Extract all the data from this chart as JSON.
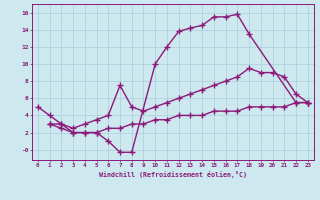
{
  "xlabel": "Windchill (Refroidissement éolien,°C)",
  "xlim": [
    -0.5,
    23.5
  ],
  "ylim": [
    -1.2,
    17
  ],
  "xticks": [
    0,
    1,
    2,
    3,
    4,
    5,
    6,
    7,
    8,
    9,
    10,
    11,
    12,
    13,
    14,
    15,
    16,
    17,
    18,
    19,
    20,
    21,
    22,
    23
  ],
  "yticks": [
    0,
    2,
    4,
    6,
    8,
    10,
    12,
    14,
    16
  ],
  "ytick_labels": [
    "-0",
    "2",
    "4",
    "6",
    "8",
    "10",
    "12",
    "14",
    "16"
  ],
  "bg_color": "#cde8ee",
  "grid_color": "#aacfda",
  "line_color": "#8b1a7a",
  "line_width": 1.0,
  "marker": "+",
  "marker_size": 4,
  "marker_lw": 1.0,
  "lines": [
    {
      "x": [
        0,
        1,
        2,
        3,
        4,
        5,
        6,
        7,
        8,
        10,
        11,
        12,
        13,
        14,
        15,
        16,
        17,
        18,
        22,
        23
      ],
      "y": [
        5,
        4,
        3,
        2,
        2,
        2,
        1,
        -0.3,
        -0.3,
        10,
        12,
        13.8,
        14.2,
        14.5,
        15.5,
        15.5,
        15.8,
        13.5,
        5.5,
        5.5
      ]
    },
    {
      "x": [
        1,
        2,
        3,
        4,
        5,
        6,
        7,
        8,
        9,
        10,
        11,
        12,
        13,
        14,
        15,
        16,
        17,
        18,
        19,
        20,
        21,
        22,
        23
      ],
      "y": [
        3,
        3,
        2.5,
        3,
        3.5,
        4,
        7.5,
        5,
        4.5,
        5,
        5.5,
        6,
        6.5,
        7,
        7.5,
        8,
        8.5,
        9.5,
        9,
        9,
        8.5,
        6.5,
        5.5
      ]
    },
    {
      "x": [
        1,
        2,
        3,
        4,
        5,
        6,
        7,
        8,
        9,
        10,
        11,
        12,
        13,
        14,
        15,
        16,
        17,
        18,
        19,
        20,
        21,
        22,
        23
      ],
      "y": [
        3,
        2.5,
        2,
        2,
        2,
        2.5,
        2.5,
        3,
        3,
        3.5,
        3.5,
        4,
        4,
        4,
        4.5,
        4.5,
        4.5,
        5,
        5,
        5,
        5,
        5.5,
        5.5
      ]
    }
  ]
}
